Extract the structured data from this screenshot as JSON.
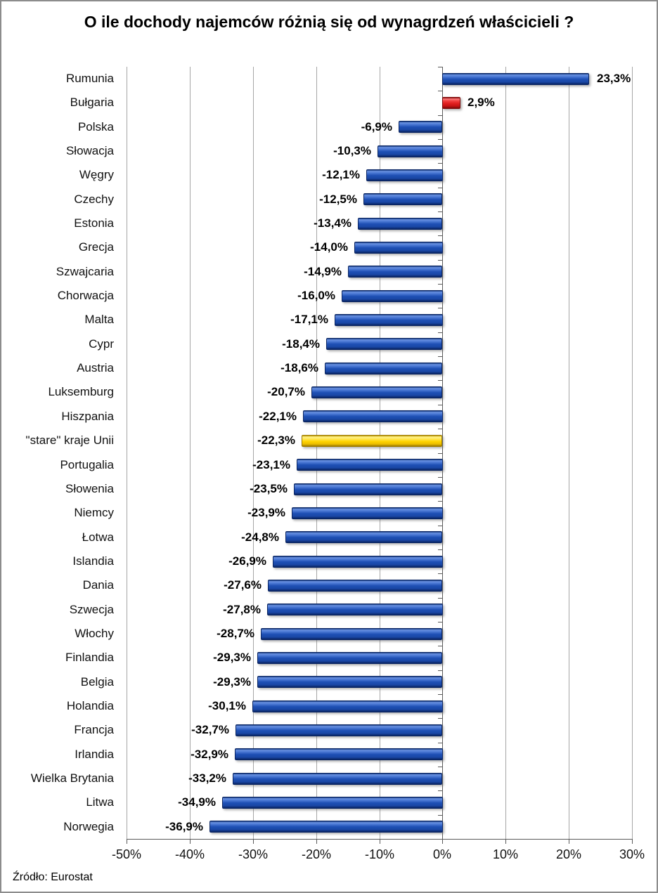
{
  "title": "O ile dochody najemców różnią się od wynagrdzeń właścicieli ?",
  "source": "Źródło: Eurostat",
  "chart_data": {
    "type": "bar",
    "orientation": "horizontal",
    "title": "O ile dochody najemców różnią się od wynagrdzeń właścicieli ?",
    "source": "Źródło: Eurostat",
    "categories": [
      "Rumunia",
      "Bułgaria",
      "Polska",
      "Słowacja",
      "Węgry",
      "Czechy",
      "Estonia",
      "Grecja",
      "Szwajcaria",
      "Chorwacja",
      "Malta",
      "Cypr",
      "Austria",
      "Luksemburg",
      "Hiszpania",
      "\"stare\" kraje Unii",
      "Portugalia",
      "Słowenia",
      "Niemcy",
      "Łotwa",
      "Islandia",
      "Dania",
      "Szwecja",
      "Włochy",
      "Finlandia",
      "Belgia",
      "Holandia",
      "Francja",
      "Irlandia",
      "Wielka Brytania",
      "Litwa",
      "Norwegia"
    ],
    "values": [
      23.3,
      2.9,
      -6.9,
      -10.3,
      -12.1,
      -12.5,
      -13.4,
      -14.0,
      -14.9,
      -16.0,
      -17.1,
      -18.4,
      -18.6,
      -20.7,
      -22.1,
      -22.3,
      -23.1,
      -23.5,
      -23.9,
      -24.8,
      -26.9,
      -27.6,
      -27.8,
      -28.7,
      -29.3,
      -29.3,
      -30.1,
      -32.7,
      -32.9,
      -33.2,
      -34.9,
      -36.9
    ],
    "labels": [
      "23,3%",
      "2,9%",
      "-6,9%",
      "-10,3%",
      "-12,1%",
      "-12,5%",
      "-13,4%",
      "-14,0%",
      "-14,9%",
      "-16,0%",
      "-17,1%",
      "-18,4%",
      "-18,6%",
      "-20,7%",
      "-22,1%",
      "-22,3%",
      "-23,1%",
      "-23,5%",
      "-23,9%",
      "-24,8%",
      "-26,9%",
      "-27,6%",
      "-27,8%",
      "-28,7%",
      "-29,3%",
      "-29,3%",
      "-30,1%",
      "-32,7%",
      "-32,9%",
      "-33,2%",
      "-34,9%",
      "-36,9%"
    ],
    "bar_colors": [
      "blue",
      "red",
      "blue",
      "blue",
      "blue",
      "blue",
      "blue",
      "blue",
      "blue",
      "blue",
      "blue",
      "blue",
      "blue",
      "blue",
      "blue",
      "yellow",
      "blue",
      "blue",
      "blue",
      "blue",
      "blue",
      "blue",
      "blue",
      "blue",
      "blue",
      "blue",
      "blue",
      "blue",
      "blue",
      "blue",
      "blue",
      "blue"
    ],
    "xticks": [
      "-50%",
      "-40%",
      "-30%",
      "-20%",
      "-10%",
      "0%",
      "10%",
      "20%",
      "30%"
    ],
    "xtick_values": [
      -50,
      -40,
      -30,
      -20,
      -10,
      0,
      10,
      20,
      30
    ],
    "xlim": [
      -50,
      30
    ],
    "grid": "vertical",
    "legend": "none",
    "colors": {
      "blue": "#1E4FB4",
      "red": "#E01F1F",
      "yellow": "#FFD400",
      "gridline": "#a6a6a6",
      "axis": "#5a5a5a"
    }
  }
}
